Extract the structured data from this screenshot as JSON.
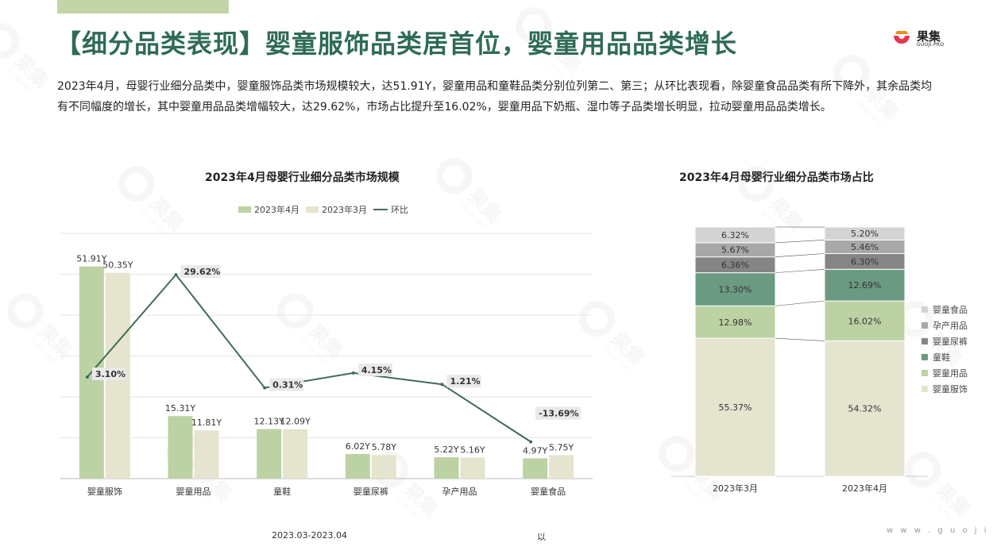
{
  "header": {
    "title": "【细分品类表现】婴童服饰品类居首位，婴童用品品类增长",
    "logo_name": "果集",
    "logo_domain": "GUOJI.PRO"
  },
  "summary": "2023年4月，母婴行业细分品类中，婴童服饰品类市场规模较大，达51.91Y，婴童用品和童鞋品类分别位列第二、第三；从环比表现看，除婴童食品品类有所下降外，其余品类均有不同幅度的增长，其中婴童用品品类增幅较大，达29.62%，市场占比提升至16.02%，婴童用品下奶瓶、湿巾等子品类增长明显，拉动婴童用品品类增长。",
  "chart_data": [
    {
      "type": "bar",
      "title": "2023年4月母婴行业细分品类市场规模",
      "categories": [
        "婴童服饰",
        "婴童用品",
        "童鞋",
        "婴童尿裤",
        "孕产用品",
        "婴童食品"
      ],
      "series": [
        {
          "name": "2023年4月",
          "type": "bar",
          "values": [
            51.91,
            15.31,
            12.13,
            6.02,
            5.22,
            4.97
          ],
          "labels": [
            "51.91Y",
            "15.31Y",
            "12.13Y",
            "6.02Y",
            "5.22Y",
            "4.97Y"
          ],
          "color": "#bcd2a3"
        },
        {
          "name": "2023年3月",
          "type": "bar",
          "values": [
            50.35,
            11.81,
            12.09,
            5.78,
            5.16,
            5.75
          ],
          "labels": [
            "50.35Y",
            "11.81Y",
            "12.09Y",
            "5.78Y",
            "5.16Y",
            "5.75Y"
          ],
          "color": "#e5e4cf"
        },
        {
          "name": "环比",
          "type": "line",
          "values": [
            3.1,
            29.62,
            0.31,
            4.15,
            1.21,
            -13.69
          ],
          "labels": [
            "3.10%",
            "29.62%",
            "0.31%",
            "4.15%",
            "1.21%",
            "-13.69%"
          ],
          "color": "#3f6b58"
        }
      ],
      "ylim": [
        0,
        60
      ],
      "line_ylim": [
        -15,
        35
      ],
      "grid": true,
      "legend": "top"
    },
    {
      "type": "bar",
      "stacked": true,
      "percent": true,
      "title": "2023年4月母婴行业细分品类市场占比",
      "categories": [
        "2023年3月",
        "2023年4月"
      ],
      "series": [
        {
          "name": "婴童服饰",
          "values": [
            55.37,
            54.32
          ],
          "color": "#e5e4cf"
        },
        {
          "name": "婴童用品",
          "values": [
            12.98,
            16.02
          ],
          "color": "#bcd2a3"
        },
        {
          "name": "童鞋",
          "values": [
            13.3,
            12.69
          ],
          "color": "#6b9a83"
        },
        {
          "name": "婴童尿裤",
          "values": [
            6.36,
            6.3
          ],
          "color": "#858585"
        },
        {
          "name": "孕产用品",
          "values": [
            5.67,
            5.46
          ],
          "color": "#a8a8a8"
        },
        {
          "name": "婴童食品",
          "values": [
            6.32,
            5.2
          ],
          "color": "#d3d3d3"
        }
      ],
      "legend": "right"
    }
  ],
  "footnotes": {
    "period": "2023.03-2023.04",
    "note": "以"
  },
  "website": "w w w . g u o j i . p r o",
  "watermark_text": "果集",
  "watermark_sub": "GUOJI.PRO"
}
